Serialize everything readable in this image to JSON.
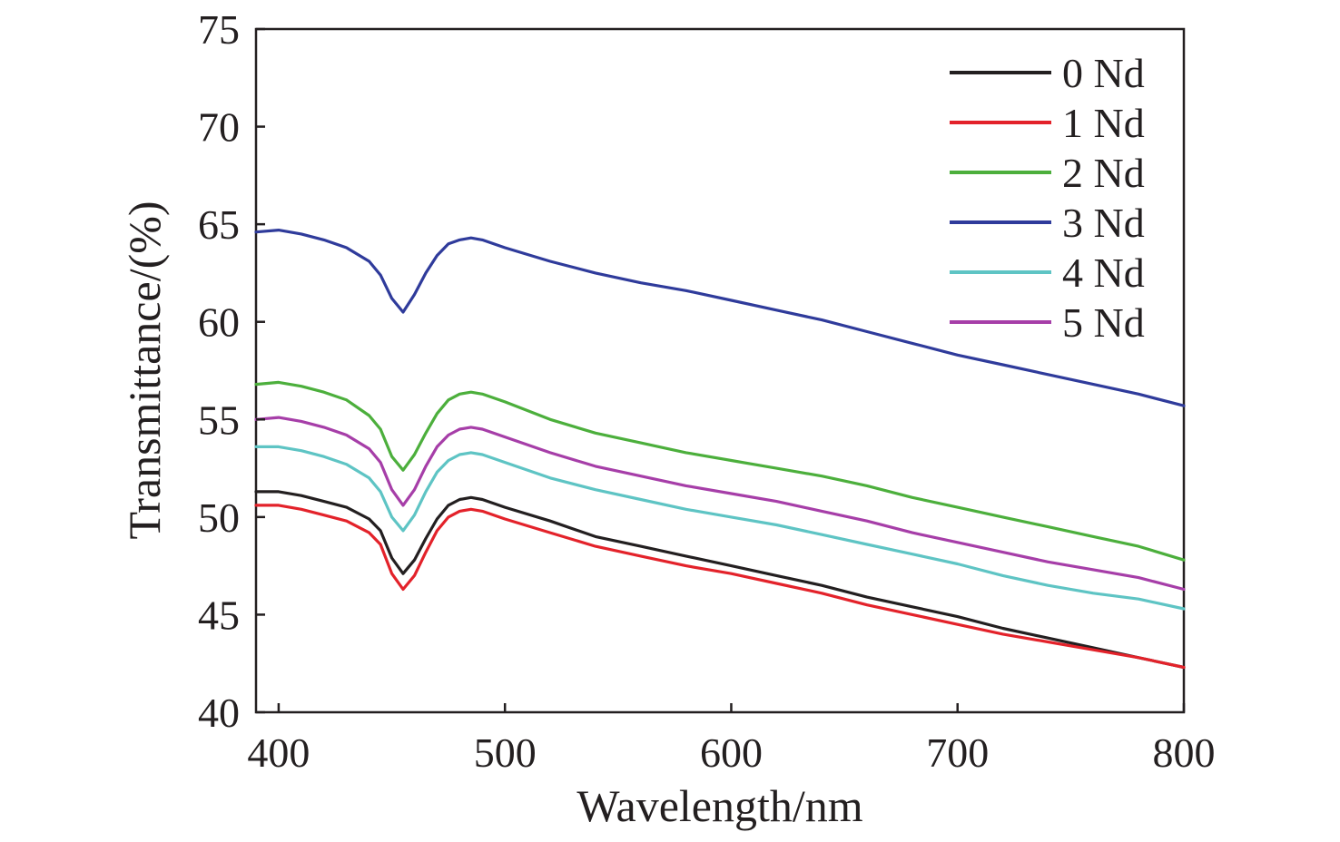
{
  "chart_data": {
    "type": "line",
    "title": "",
    "xlabel": "Wavelength/nm",
    "ylabel": "Transmittance/(%)",
    "xlim": [
      390,
      800
    ],
    "ylim": [
      40,
      75
    ],
    "xticks": [
      400,
      500,
      600,
      700,
      800
    ],
    "yticks": [
      40,
      45,
      50,
      55,
      60,
      65,
      70,
      75
    ],
    "grid": false,
    "legend_position": "top-right",
    "x": [
      390,
      400,
      410,
      420,
      430,
      440,
      445,
      450,
      455,
      460,
      465,
      470,
      475,
      480,
      485,
      490,
      500,
      520,
      540,
      560,
      580,
      600,
      620,
      640,
      660,
      680,
      700,
      720,
      740,
      760,
      780,
      800
    ],
    "series": [
      {
        "name": "0 Nd",
        "color": "#231f20",
        "values": [
          51.3,
          51.3,
          51.1,
          50.8,
          50.5,
          49.9,
          49.3,
          47.9,
          47.1,
          47.8,
          48.9,
          49.9,
          50.6,
          50.9,
          51.0,
          50.9,
          50.5,
          49.8,
          49.0,
          48.5,
          48.0,
          47.5,
          47.0,
          46.5,
          45.9,
          45.4,
          44.9,
          44.3,
          43.8,
          43.3,
          42.8,
          42.3
        ]
      },
      {
        "name": "1 Nd",
        "color": "#e3222a",
        "values": [
          50.6,
          50.6,
          50.4,
          50.1,
          49.8,
          49.2,
          48.6,
          47.1,
          46.3,
          47.0,
          48.2,
          49.3,
          50.0,
          50.3,
          50.4,
          50.3,
          49.9,
          49.2,
          48.5,
          48.0,
          47.5,
          47.1,
          46.6,
          46.1,
          45.5,
          45.0,
          44.5,
          44.0,
          43.6,
          43.2,
          42.8,
          42.3
        ]
      },
      {
        "name": "2 Nd",
        "color": "#4caf3c",
        "values": [
          56.8,
          56.9,
          56.7,
          56.4,
          56.0,
          55.2,
          54.5,
          53.1,
          52.4,
          53.2,
          54.3,
          55.3,
          56.0,
          56.3,
          56.4,
          56.3,
          55.9,
          55.0,
          54.3,
          53.8,
          53.3,
          52.9,
          52.5,
          52.1,
          51.6,
          51.0,
          50.5,
          50.0,
          49.5,
          49.0,
          48.5,
          47.8
        ]
      },
      {
        "name": "3 Nd",
        "color": "#2f3b9b",
        "values": [
          64.6,
          64.7,
          64.5,
          64.2,
          63.8,
          63.1,
          62.4,
          61.2,
          60.5,
          61.4,
          62.5,
          63.4,
          64.0,
          64.2,
          64.3,
          64.2,
          63.8,
          63.1,
          62.5,
          62.0,
          61.6,
          61.1,
          60.6,
          60.1,
          59.5,
          58.9,
          58.3,
          57.8,
          57.3,
          56.8,
          56.3,
          55.7
        ]
      },
      {
        "name": "4 Nd",
        "color": "#5ec4c4",
        "values": [
          53.6,
          53.6,
          53.4,
          53.1,
          52.7,
          52.0,
          51.3,
          50.0,
          49.3,
          50.1,
          51.3,
          52.3,
          52.9,
          53.2,
          53.3,
          53.2,
          52.8,
          52.0,
          51.4,
          50.9,
          50.4,
          50.0,
          49.6,
          49.1,
          48.6,
          48.1,
          47.6,
          47.0,
          46.5,
          46.1,
          45.8,
          45.3
        ]
      },
      {
        "name": "5 Nd",
        "color": "#a63ea8",
        "values": [
          55.0,
          55.1,
          54.9,
          54.6,
          54.2,
          53.5,
          52.8,
          51.4,
          50.6,
          51.4,
          52.6,
          53.6,
          54.2,
          54.5,
          54.6,
          54.5,
          54.1,
          53.3,
          52.6,
          52.1,
          51.6,
          51.2,
          50.8,
          50.3,
          49.8,
          49.2,
          48.7,
          48.2,
          47.7,
          47.3,
          46.9,
          46.3
        ]
      }
    ]
  }
}
